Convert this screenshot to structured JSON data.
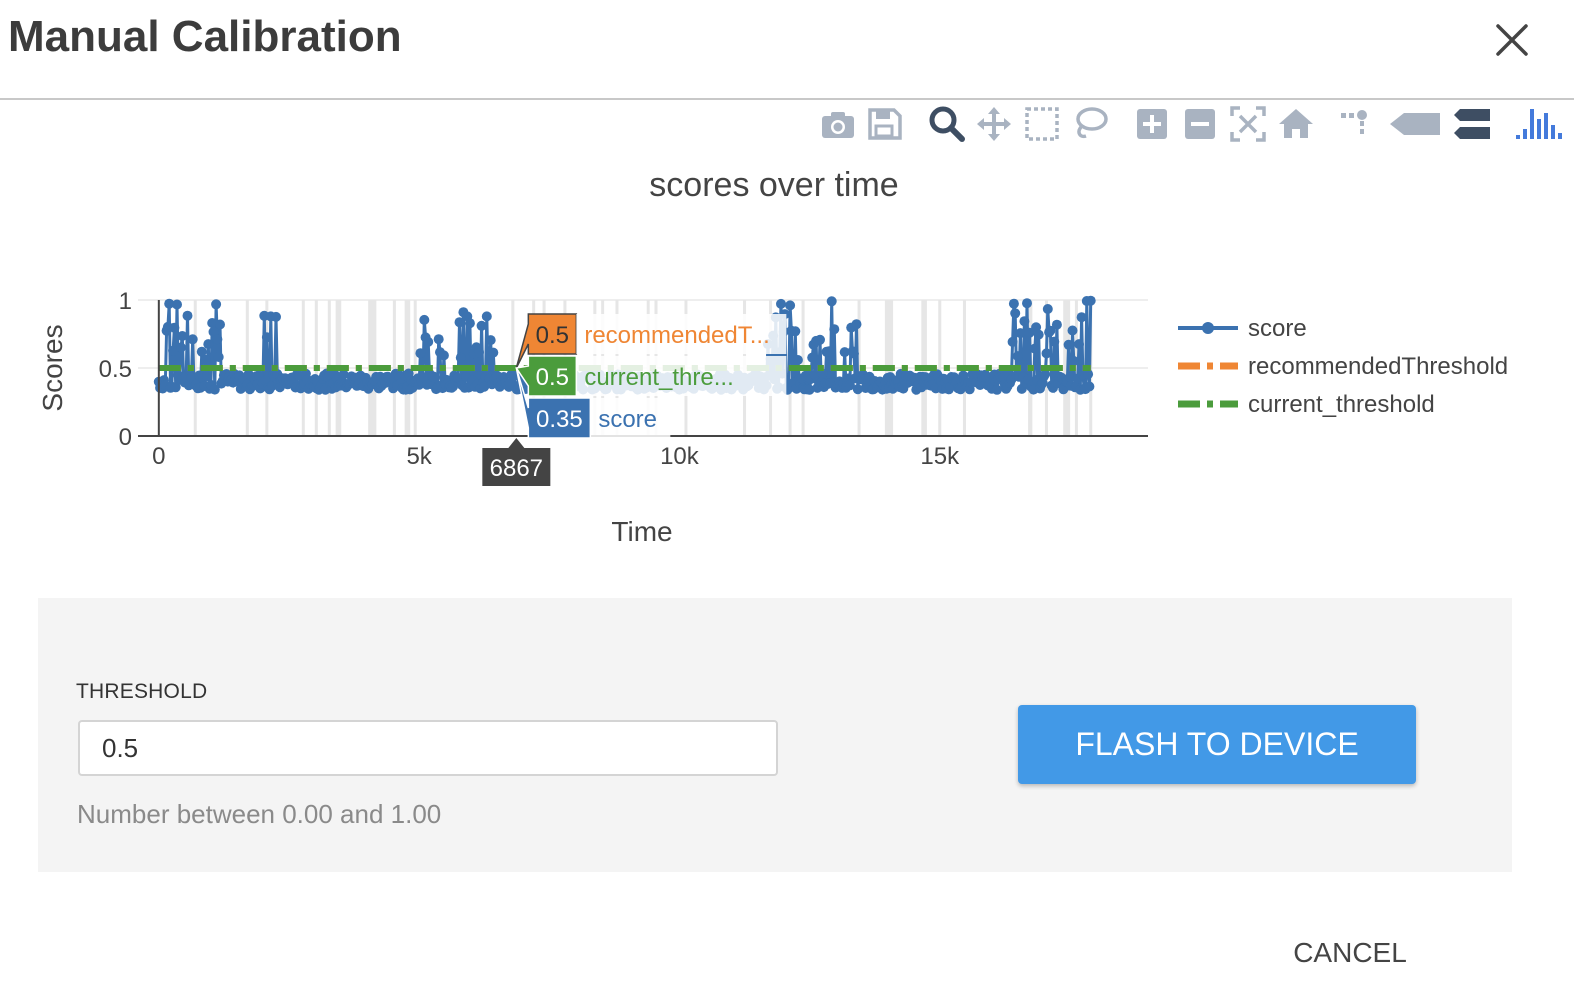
{
  "dialog": {
    "title": "Manual Calibration"
  },
  "modebar": {
    "icons": [
      "camera-icon",
      "save-icon",
      "zoom-icon",
      "pan-icon",
      "box-select-icon",
      "lasso-select-icon",
      "zoom-in-icon",
      "zoom-out-icon",
      "autoscale-icon",
      "reset-axes-icon",
      "spike-lines-icon",
      "hover-closest-icon",
      "hover-compare-icon",
      "plotly-logo-icon"
    ]
  },
  "chart_data": {
    "type": "line",
    "title": "scores over time",
    "xlabel": "Time",
    "ylabel": "Scores",
    "xlim": [
      -400,
      19000
    ],
    "ylim": [
      0,
      1
    ],
    "x_ticks": [
      "0",
      "5k",
      "10k",
      "15k"
    ],
    "y_ticks": [
      "0",
      "0.5",
      "1"
    ],
    "series": [
      {
        "name": "score",
        "color": "#3b72b0",
        "style": "lines+markers",
        "x_range": [
          0,
          17900
        ],
        "typical_value": 0.4
      },
      {
        "name": "recommendedThreshold",
        "color": "#ef8634",
        "style": "dashdot",
        "values": [
          0.5,
          0.5
        ],
        "x": [
          0,
          17900
        ]
      },
      {
        "name": "current_threshold",
        "color": "#4b9c3c",
        "style": "dashdot",
        "values": [
          0.5,
          0.5
        ],
        "x": [
          0,
          17900
        ]
      }
    ],
    "legend": [
      "score",
      "recommendedThreshold",
      "current_threshold"
    ],
    "legend_position": "right",
    "hover": {
      "x_label": "6867",
      "labels": [
        {
          "value": "0.5",
          "name": "recommendedT..."
        },
        {
          "value": "0.5",
          "name": "current_thre..."
        },
        {
          "value": "0.35",
          "name": "score"
        }
      ]
    }
  },
  "form": {
    "threshold_label": "THRESHOLD",
    "threshold_value": "0.5",
    "threshold_help": "Number between 0.00 and 1.00",
    "flash_label": "FLASH TO DEVICE"
  },
  "footer": {
    "cancel_label": "CANCEL"
  }
}
